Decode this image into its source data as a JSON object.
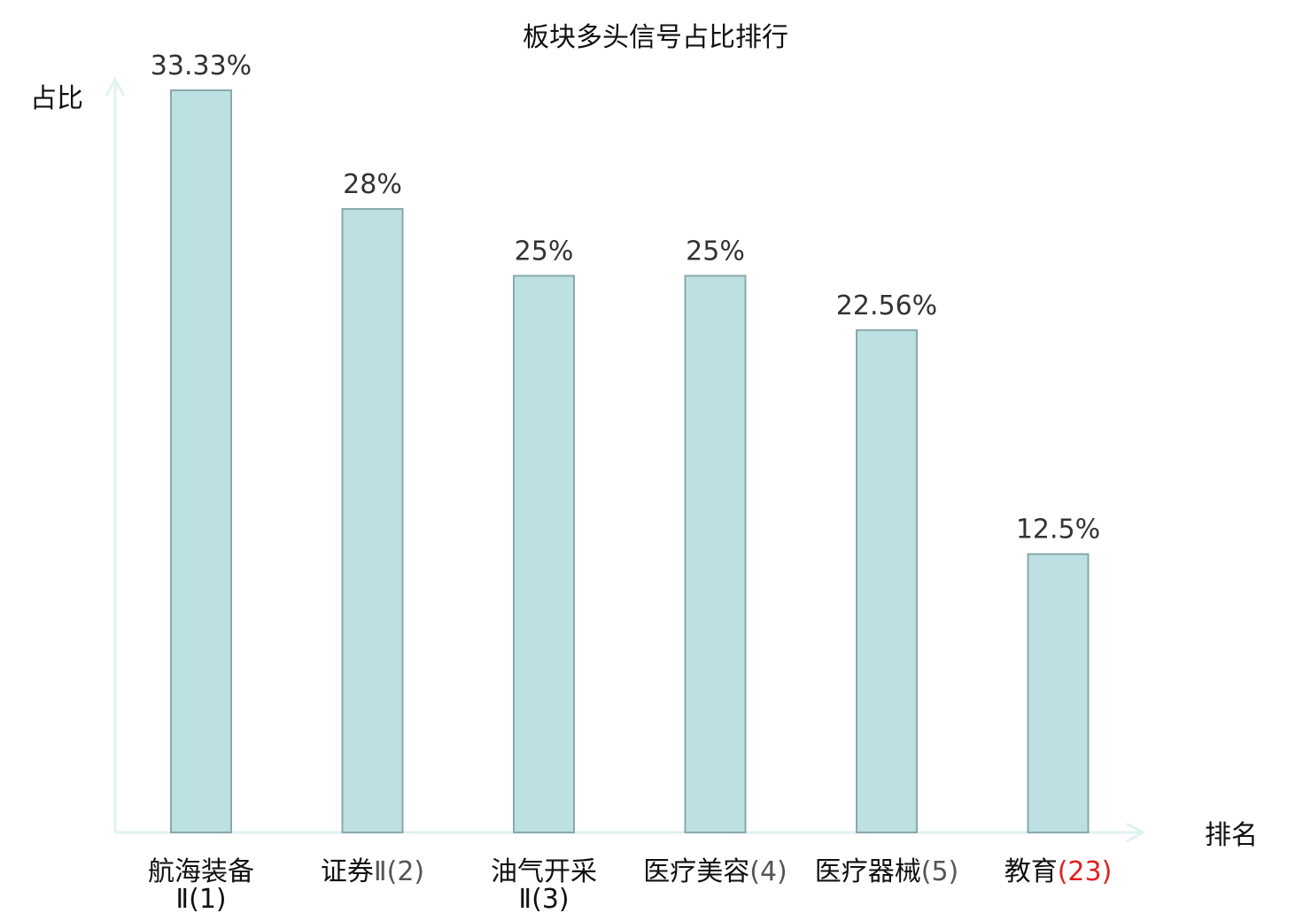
{
  "chart_data": {
    "type": "bar",
    "title": "板块多头信号占比排行",
    "xlabel": "排名",
    "ylabel": "占比",
    "ylim": [
      0,
      35
    ],
    "grid": false,
    "categories": [
      {
        "name": "航海装备",
        "suffix": "Ⅱ(1)",
        "line2": true
      },
      {
        "name": "证券",
        "suffix": "Ⅱ(2)",
        "line2": false
      },
      {
        "name": "油气开采",
        "suffix": "Ⅱ(3)",
        "line2": true
      },
      {
        "name": "医疗美容",
        "suffix": "(4)",
        "line2": false
      },
      {
        "name": "医疗器械",
        "suffix": "(5)",
        "line2": false
      },
      {
        "name": "教育",
        "suffix": "(23)",
        "line2": false,
        "highlight": true
      }
    ],
    "values": [
      33.33,
      28,
      25,
      25,
      22.56,
      12.5
    ],
    "value_labels": [
      "33.33%",
      "28%",
      "25%",
      "25%",
      "22.56%",
      "12.5%"
    ],
    "colors": {
      "bar_fill": "#bde0e3",
      "bar_stroke": "#8aa8a9",
      "axis": "#e0f2f1",
      "highlight": "#e02020"
    }
  }
}
